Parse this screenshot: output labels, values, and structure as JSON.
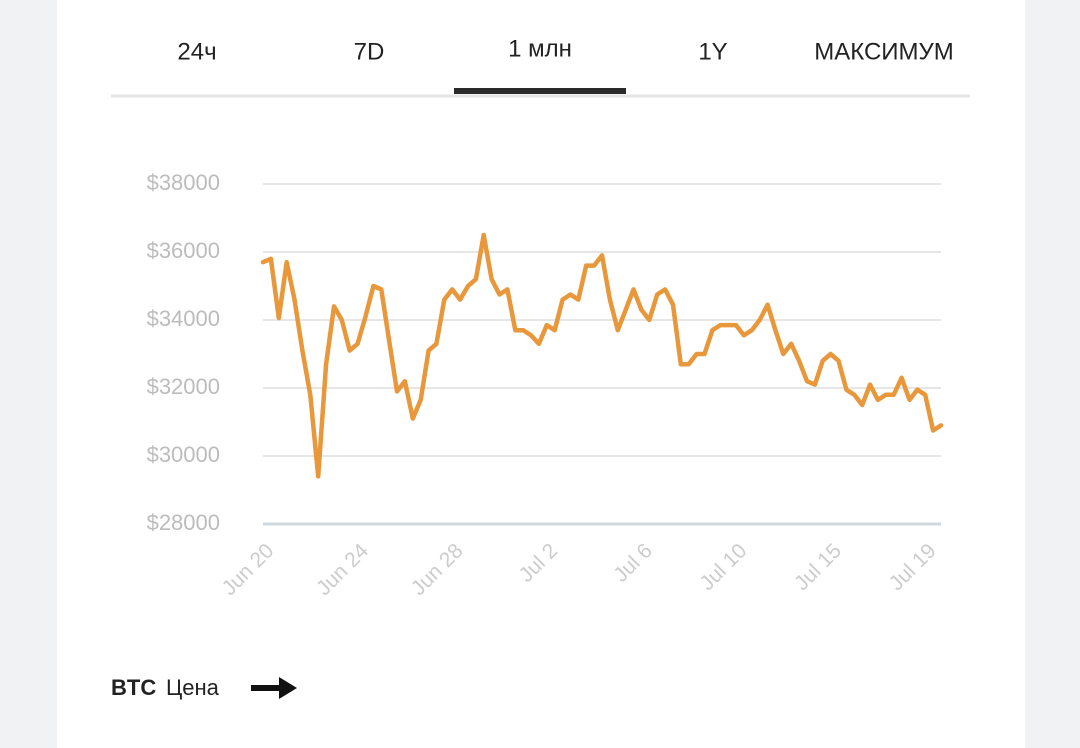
{
  "tabs": [
    "24ч",
    "7D",
    "1 млн",
    "1Y",
    "МАКСИМУМ"
  ],
  "active_tab": 2,
  "chart_data": {
    "type": "line",
    "categories": [
      "Jun 20",
      null,
      null,
      null,
      null,
      null,
      null,
      null,
      null,
      null,
      null,
      null,
      "Jun 24",
      null,
      null,
      null,
      null,
      null,
      null,
      null,
      null,
      null,
      null,
      null,
      "Jun 28",
      null,
      null,
      null,
      null,
      null,
      null,
      null,
      null,
      null,
      null,
      null,
      "Jul 2",
      null,
      null,
      null,
      null,
      null,
      null,
      null,
      null,
      null,
      null,
      null,
      "Jul 6",
      null,
      null,
      null,
      null,
      null,
      null,
      null,
      null,
      null,
      null,
      null,
      "Jul 10",
      null,
      null,
      null,
      null,
      null,
      null,
      null,
      null,
      null,
      null,
      null,
      "Jul 15",
      null,
      null,
      null,
      null,
      null,
      null,
      null,
      null,
      null,
      null,
      null,
      "Jul 19",
      null,
      null
    ],
    "series": [
      {
        "name": "Цена",
        "color": "#e8973a",
        "values": [
          35700,
          35800,
          34060,
          35700,
          34600,
          33100,
          31800,
          29400,
          32700,
          34400,
          34000,
          33100,
          33300,
          34100,
          35000,
          34900,
          33400,
          31900,
          32200,
          31100,
          31650,
          33100,
          33300,
          34600,
          34900,
          34600,
          35000,
          35200,
          36500,
          35200,
          34750,
          34900,
          33700,
          33700,
          33550,
          33300,
          33850,
          33700,
          34600,
          34750,
          34600,
          35600,
          35600,
          35900,
          34600,
          33700,
          34300,
          34900,
          34300,
          34000,
          34750,
          34900,
          34450,
          32700,
          32700,
          33000,
          33000,
          33700,
          33850,
          33850,
          33850,
          33550,
          33700,
          34000,
          34450,
          33700,
          33000,
          33300,
          32800,
          32200,
          32100,
          32800,
          33000,
          32800,
          31950,
          31800,
          31500,
          32100,
          31650,
          31800,
          31800,
          32300,
          31650,
          31950,
          31800,
          30750,
          30900
        ]
      }
    ],
    "ylim": [
      28000,
      38000
    ],
    "yticks": [
      {
        "value": 28000,
        "label": "$28000"
      },
      {
        "value": 30000,
        "label": "$30000"
      },
      {
        "value": 32000,
        "label": "$32000"
      },
      {
        "value": 34000,
        "label": "$34000"
      },
      {
        "value": 36000,
        "label": "$36000"
      },
      {
        "value": 38000,
        "label": "$38000"
      }
    ],
    "grid": true,
    "legend": {
      "symbol": "BTC",
      "label": "Цена"
    }
  }
}
